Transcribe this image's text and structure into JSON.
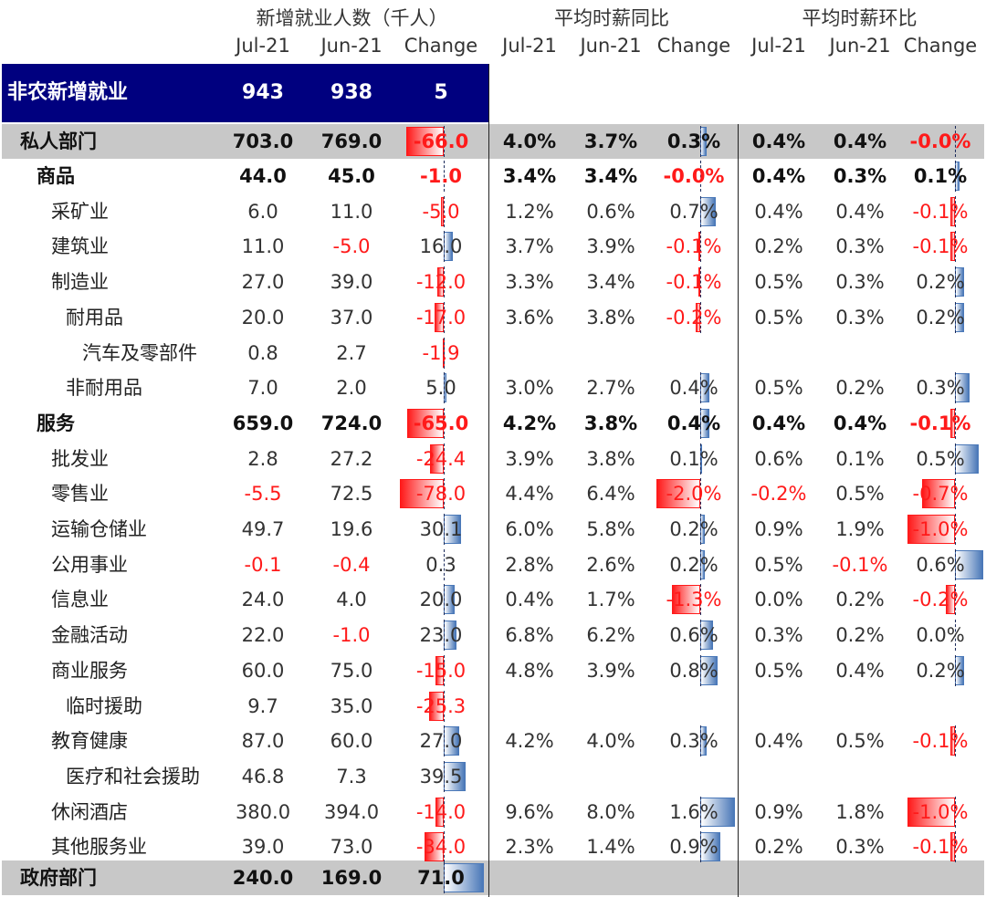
{
  "colors": {
    "header_band": "#00007f",
    "gray_band": "#c8c8c8",
    "negative_text": "#ff1a1a",
    "positive_bar": "#4a78b8",
    "negative_bar": "#ff1a1a"
  },
  "groups": [
    {
      "title": "新增就业人数（千人）",
      "cols": [
        "Jul-21",
        "Jun-21",
        "Change"
      ]
    },
    {
      "title": "平均时薪同比",
      "cols": [
        "Jul-21",
        "Jun-21",
        "Change"
      ]
    },
    {
      "title": "平均时薪环比",
      "cols": [
        "Jul-21",
        "Jun-21",
        "Change"
      ]
    }
  ],
  "chart_data": {
    "type": "table",
    "rows": [
      {
        "label": "非农新增就业",
        "indent": 0,
        "style": "header",
        "emp": [
          "943",
          "938",
          "5"
        ],
        "yoy": [
          "",
          "",
          ""
        ],
        "mom": [
          "",
          "",
          ""
        ]
      },
      {
        "label": "私人部门",
        "indent": 1,
        "style": "gray",
        "emp": [
          "703.0",
          "769.0",
          "-66.0"
        ],
        "yoy": [
          "4.0%",
          "3.7%",
          "0.3%"
        ],
        "mom": [
          "0.4%",
          "0.4%",
          "-0.0%"
        ]
      },
      {
        "label": "商品",
        "indent": 2,
        "style": "bold",
        "emp": [
          "44.0",
          "45.0",
          "-1.0"
        ],
        "yoy": [
          "3.4%",
          "3.4%",
          "-0.0%"
        ],
        "mom": [
          "0.4%",
          "0.3%",
          "0.1%"
        ]
      },
      {
        "label": "采矿业",
        "indent": 3,
        "style": "normal",
        "emp": [
          "6.0",
          "11.0",
          "-5.0"
        ],
        "yoy": [
          "1.2%",
          "0.6%",
          "0.7%"
        ],
        "mom": [
          "0.4%",
          "0.4%",
          "-0.1%"
        ]
      },
      {
        "label": "建筑业",
        "indent": 3,
        "style": "normal",
        "emp": [
          "11.0",
          "-5.0",
          "16.0"
        ],
        "yoy": [
          "3.7%",
          "3.9%",
          "-0.1%"
        ],
        "mom": [
          "0.2%",
          "0.3%",
          "-0.1%"
        ]
      },
      {
        "label": "制造业",
        "indent": 3,
        "style": "normal",
        "emp": [
          "27.0",
          "39.0",
          "-12.0"
        ],
        "yoy": [
          "3.3%",
          "3.4%",
          "-0.1%"
        ],
        "mom": [
          "0.5%",
          "0.3%",
          "0.2%"
        ]
      },
      {
        "label": "耐用品",
        "indent": 4,
        "style": "normal",
        "emp": [
          "20.0",
          "37.0",
          "-17.0"
        ],
        "yoy": [
          "3.6%",
          "3.8%",
          "-0.2%"
        ],
        "mom": [
          "0.5%",
          "0.3%",
          "0.2%"
        ]
      },
      {
        "label": "汽车及零部件",
        "indent": 5,
        "style": "normal",
        "emp": [
          "0.8",
          "2.7",
          "-1.9"
        ],
        "yoy": [
          "",
          "",
          ""
        ],
        "mom": [
          "",
          "",
          ""
        ]
      },
      {
        "label": "非耐用品",
        "indent": 4,
        "style": "normal",
        "emp": [
          "7.0",
          "2.0",
          "5.0"
        ],
        "yoy": [
          "3.0%",
          "2.7%",
          "0.4%"
        ],
        "mom": [
          "0.5%",
          "0.2%",
          "0.3%"
        ]
      },
      {
        "label": "服务",
        "indent": 2,
        "style": "bold",
        "emp": [
          "659.0",
          "724.0",
          "-65.0"
        ],
        "yoy": [
          "4.2%",
          "3.8%",
          "0.4%"
        ],
        "mom": [
          "0.4%",
          "0.4%",
          "-0.1%"
        ]
      },
      {
        "label": "批发业",
        "indent": 3,
        "style": "normal",
        "emp": [
          "2.8",
          "27.2",
          "-24.4"
        ],
        "yoy": [
          "3.9%",
          "3.8%",
          "0.1%"
        ],
        "mom": [
          "0.6%",
          "0.1%",
          "0.5%"
        ]
      },
      {
        "label": "零售业",
        "indent": 3,
        "style": "normal",
        "emp": [
          "-5.5",
          "72.5",
          "-78.0"
        ],
        "yoy": [
          "4.4%",
          "6.4%",
          "-2.0%"
        ],
        "mom": [
          "-0.2%",
          "0.5%",
          "-0.7%"
        ]
      },
      {
        "label": "运输仓储业",
        "indent": 3,
        "style": "normal",
        "emp": [
          "49.7",
          "19.6",
          "30.1"
        ],
        "yoy": [
          "6.0%",
          "5.8%",
          "0.2%"
        ],
        "mom": [
          "0.9%",
          "1.9%",
          "-1.0%"
        ]
      },
      {
        "label": "公用事业",
        "indent": 3,
        "style": "normal",
        "emp": [
          "-0.1",
          "-0.4",
          "0.3"
        ],
        "yoy": [
          "2.8%",
          "2.6%",
          "0.2%"
        ],
        "mom": [
          "0.5%",
          "-0.1%",
          "0.6%"
        ]
      },
      {
        "label": "信息业",
        "indent": 3,
        "style": "normal",
        "emp": [
          "24.0",
          "4.0",
          "20.0"
        ],
        "yoy": [
          "0.4%",
          "1.7%",
          "-1.3%"
        ],
        "mom": [
          "0.0%",
          "0.2%",
          "-0.2%"
        ]
      },
      {
        "label": "金融活动",
        "indent": 3,
        "style": "normal",
        "emp": [
          "22.0",
          "-1.0",
          "23.0"
        ],
        "yoy": [
          "6.8%",
          "6.2%",
          "0.6%"
        ],
        "mom": [
          "0.3%",
          "0.2%",
          "0.0%"
        ]
      },
      {
        "label": "商业服务",
        "indent": 3,
        "style": "normal",
        "emp": [
          "60.0",
          "75.0",
          "-15.0"
        ],
        "yoy": [
          "4.8%",
          "3.9%",
          "0.8%"
        ],
        "mom": [
          "0.5%",
          "0.4%",
          "0.2%"
        ]
      },
      {
        "label": "临时援助",
        "indent": 4,
        "style": "normal",
        "emp": [
          "9.7",
          "35.0",
          "-25.3"
        ],
        "yoy": [
          "",
          "",
          ""
        ],
        "mom": [
          "",
          "",
          ""
        ]
      },
      {
        "label": "教育健康",
        "indent": 3,
        "style": "normal",
        "emp": [
          "87.0",
          "60.0",
          "27.0"
        ],
        "yoy": [
          "4.2%",
          "4.0%",
          "0.3%"
        ],
        "mom": [
          "0.4%",
          "0.5%",
          "-0.1%"
        ]
      },
      {
        "label": "医疗和社会援助",
        "indent": 4,
        "style": "normal",
        "emp": [
          "46.8",
          "7.3",
          "39.5"
        ],
        "yoy": [
          "",
          "",
          ""
        ],
        "mom": [
          "",
          "",
          ""
        ]
      },
      {
        "label": "休闲酒店",
        "indent": 3,
        "style": "normal",
        "emp": [
          "380.0",
          "394.0",
          "-14.0"
        ],
        "yoy": [
          "9.6%",
          "8.0%",
          "1.6%"
        ],
        "mom": [
          "0.9%",
          "1.8%",
          "-1.0%"
        ]
      },
      {
        "label": "其他服务业",
        "indent": 3,
        "style": "normal",
        "emp": [
          "39.0",
          "73.0",
          "-34.0"
        ],
        "yoy": [
          "2.3%",
          "1.4%",
          "0.9%"
        ],
        "mom": [
          "0.2%",
          "0.3%",
          "-0.1%"
        ]
      },
      {
        "label": "政府部门",
        "indent": 1,
        "style": "gray",
        "emp": [
          "240.0",
          "169.0",
          "71.0"
        ],
        "yoy": [
          "",
          "",
          ""
        ],
        "mom": [
          "",
          "",
          ""
        ]
      }
    ]
  }
}
